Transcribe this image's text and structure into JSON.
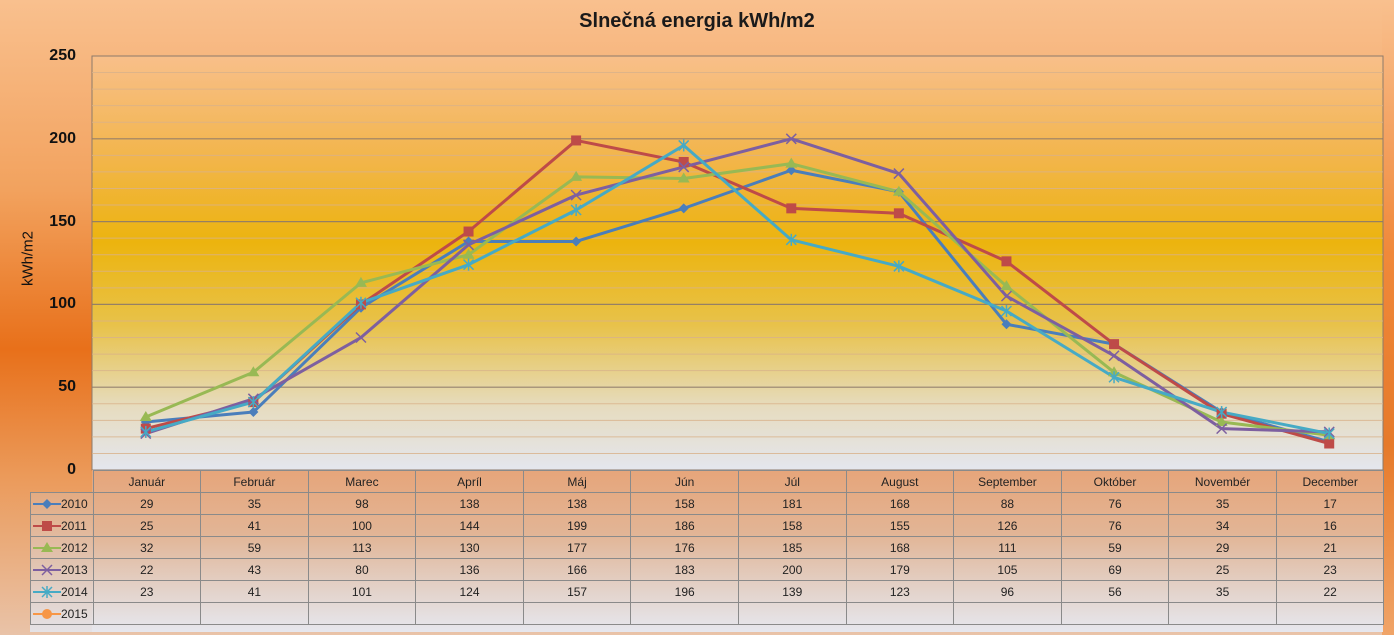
{
  "chart_data": {
    "type": "line",
    "title": "Slnečná energia kWh/m2",
    "xlabel": "",
    "ylabel": "kWh/m2",
    "ylim": [
      0,
      250
    ],
    "yticks": [
      "0",
      "50",
      "100",
      "150",
      "200",
      "250"
    ],
    "grid": true,
    "legend": "data-table-left",
    "categories": [
      "Január",
      "Február",
      "Marec",
      "Apríl",
      "Máj",
      "Jún",
      "Júl",
      "August",
      "September",
      "Október",
      "Novembér",
      "December"
    ],
    "series": [
      {
        "name": "2010",
        "color": "#4a7ebb",
        "marker": "diamond",
        "values": [
          29,
          35,
          98,
          138,
          138,
          158,
          181,
          168,
          88,
          76,
          35,
          17
        ]
      },
      {
        "name": "2011",
        "color": "#be4b48",
        "marker": "square",
        "values": [
          25,
          41,
          100,
          144,
          199,
          186,
          158,
          155,
          126,
          76,
          34,
          16
        ]
      },
      {
        "name": "2012",
        "color": "#98b954",
        "marker": "triangle",
        "values": [
          32,
          59,
          113,
          130,
          177,
          176,
          185,
          168,
          111,
          59,
          29,
          21
        ]
      },
      {
        "name": "2013",
        "color": "#7d5fa0",
        "marker": "x",
        "values": [
          22,
          43,
          80,
          136,
          166,
          183,
          200,
          179,
          105,
          69,
          25,
          23
        ]
      },
      {
        "name": "2014",
        "color": "#46aac5",
        "marker": "star",
        "values": [
          23,
          41,
          101,
          124,
          157,
          196,
          139,
          123,
          96,
          56,
          35,
          22
        ]
      },
      {
        "name": "2015",
        "color": "#f79646",
        "marker": "circle",
        "values": [
          null,
          null,
          null,
          null,
          null,
          null,
          null,
          null,
          null,
          null,
          null,
          null
        ]
      }
    ]
  }
}
